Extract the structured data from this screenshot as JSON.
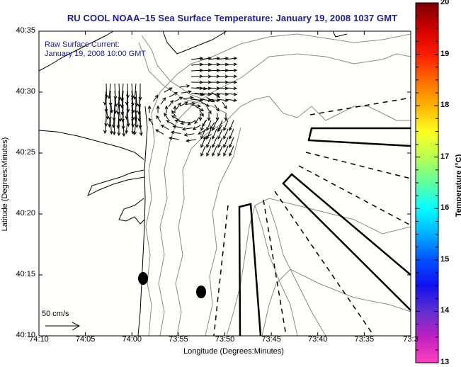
{
  "title": "RU COOL  NOAA–15  Sea Surface Temperature:  January 19, 2008 1037 GMT",
  "overlay": {
    "line1": "Raw Surface Current:",
    "line2": "January 19, 2008 10:00 GMT"
  },
  "scale_vector": {
    "label": "50 cm/s"
  },
  "colorbar": {
    "label": "Temperature (°C)",
    "min": 13,
    "max": 20,
    "ticks": [
      "20",
      "19",
      "18",
      "17",
      "16",
      "15",
      "14",
      "13"
    ],
    "stops": [
      "#7a0000",
      "#d00000",
      "#ff1a00",
      "#ff6a00",
      "#ffb300",
      "#ffff20",
      "#b8ff50",
      "#60ffa0",
      "#00ffff",
      "#00b0ff",
      "#0050ff",
      "#1010f0",
      "#6030d0",
      "#c020c0",
      "#ff40c0"
    ]
  },
  "chart_data": {
    "type": "map",
    "title": "RU COOL  NOAA–15  Sea Surface Temperature:  January 19, 2008 1037 GMT",
    "xlabel": "Longitude (Degrees:Minutes)",
    "ylabel": "Latitude (Degrees:Minutes)",
    "x_ticks": [
      "74:10",
      "74:05",
      "74:00",
      "73:55",
      "73:50",
      "73:45",
      "73:40",
      "73:35",
      "73:3"
    ],
    "y_ticks": [
      "40:35",
      "40:30",
      "40:25",
      "40:20",
      "40:15",
      "40:10"
    ],
    "xlim_minutes_west": [
      4450,
      4410
    ],
    "ylim_minutes_north": [
      2410,
      2435
    ],
    "markers": [
      {
        "name": "station-1",
        "lon": "73:59",
        "lat": "40:14.5"
      },
      {
        "name": "station-2",
        "lon": "73:52",
        "lat": "40:13.4"
      }
    ],
    "annotations": [
      "Raw Surface Current:",
      "January 19, 2008 10:00 GMT",
      "50 cm/s"
    ],
    "colorbar": {
      "label": "Temperature (°C)",
      "range": [
        13,
        20
      ]
    }
  }
}
